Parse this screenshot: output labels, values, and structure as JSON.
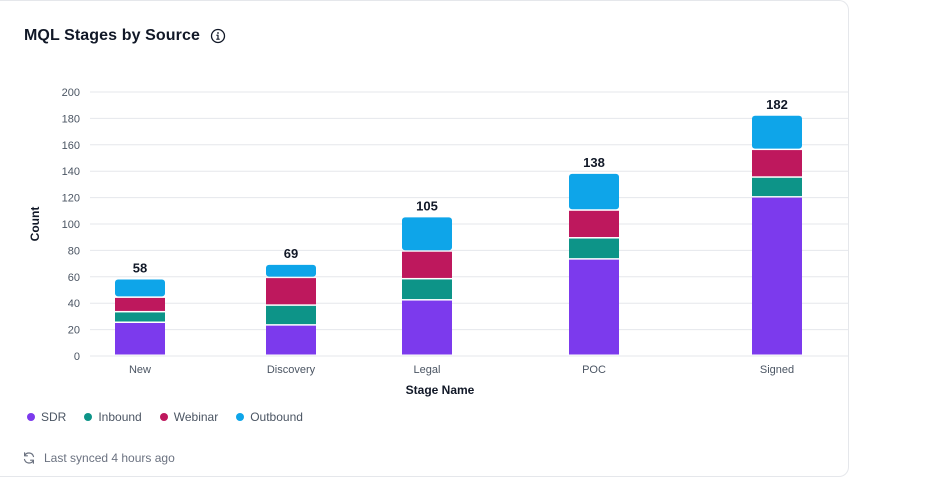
{
  "card": {
    "title": "MQL Stages by Source",
    "info_icon": "info-icon",
    "footer_text": "Last synced 4 hours ago",
    "footer_icon": "sync-icon"
  },
  "chart_data": {
    "type": "bar",
    "stacked": true,
    "categories": [
      "New",
      "Discovery",
      "Legal",
      "POC",
      "Signed"
    ],
    "series": [
      {
        "name": "SDR",
        "color": "#7c3aed",
        "values": [
          25,
          23,
          42,
          73,
          120
        ]
      },
      {
        "name": "Inbound",
        "color": "#0d9488",
        "values": [
          8,
          15,
          16,
          16,
          15
        ]
      },
      {
        "name": "Webinar",
        "color": "#be185d",
        "values": [
          11,
          21,
          21,
          21,
          21
        ]
      },
      {
        "name": "Outbound",
        "color": "#0ea5e9",
        "values": [
          14,
          10,
          26,
          28,
          26
        ]
      }
    ],
    "totals": [
      58,
      69,
      105,
      138,
      182
    ],
    "xlabel": "Stage Name",
    "ylabel": "Count",
    "ylim": [
      0,
      200
    ],
    "yticks": [
      0,
      20,
      40,
      60,
      80,
      100,
      120,
      140,
      160,
      180,
      200
    ],
    "grid": true,
    "legend_position": "bottom-left"
  }
}
